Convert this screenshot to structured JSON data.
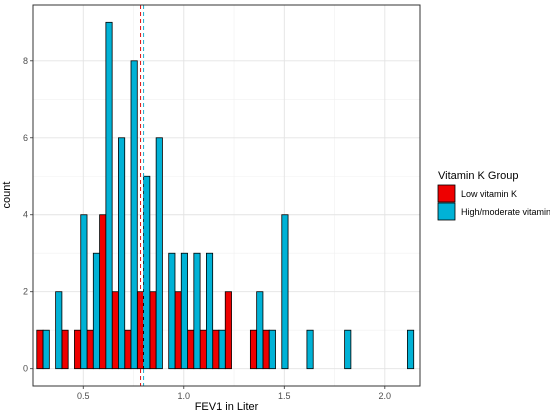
{
  "chart_data": {
    "type": "bar",
    "xlabel": "FEV1 in Liter",
    "ylabel": "count",
    "xlim": [
      0.25,
      2.175
    ],
    "ylim": [
      -0.45,
      9.45
    ],
    "x_ticks": [
      "0.5",
      "1.0",
      "1.5",
      "2.0"
    ],
    "x_tick_values": [
      0.5,
      1.0,
      1.5,
      2.0
    ],
    "y_ticks": [
      "0",
      "2",
      "4",
      "6",
      "8"
    ],
    "y_tick_values": [
      0,
      2,
      4,
      6,
      8
    ],
    "bin_width": 0.0625,
    "grid": true,
    "legend": {
      "title": "Vitamin K Group",
      "position": "right"
    },
    "reference_lines": [
      {
        "series": "Low vitamin K",
        "x": 0.785,
        "style": "dashed",
        "color": "#e01010"
      },
      {
        "series": "High/moderate vitamin K",
        "x": 0.8,
        "style": "dashed",
        "color": "#1aaccd"
      }
    ],
    "x": [
      0.3,
      0.3625,
      0.425,
      0.4875,
      0.55,
      0.6125,
      0.675,
      0.7375,
      0.8,
      0.8625,
      0.925,
      0.9875,
      1.05,
      1.1125,
      1.175,
      1.2375,
      1.3,
      1.3625,
      1.425,
      1.4875,
      1.55,
      1.6125,
      1.675,
      1.7375,
      1.8,
      1.8625,
      1.925,
      1.9875,
      2.05,
      2.1125
    ],
    "series": [
      {
        "name": "Low vitamin K",
        "color": "#ee0000",
        "values": [
          1,
          0,
          1,
          1,
          1,
          4,
          2,
          1,
          2,
          2,
          0,
          2,
          1,
          1,
          1,
          2,
          0,
          1,
          1,
          0,
          0,
          0,
          0,
          0,
          0,
          0,
          0,
          0,
          0,
          0
        ]
      },
      {
        "name": "High/moderate vitamin K",
        "color": "#00b2d6",
        "values": [
          1,
          2,
          0,
          4,
          3,
          9,
          6,
          8,
          5,
          6,
          3,
          3,
          3,
          3,
          1,
          0,
          0,
          2,
          1,
          4,
          0,
          1,
          0,
          0,
          1,
          0,
          0,
          0,
          0,
          1
        ]
      }
    ]
  }
}
